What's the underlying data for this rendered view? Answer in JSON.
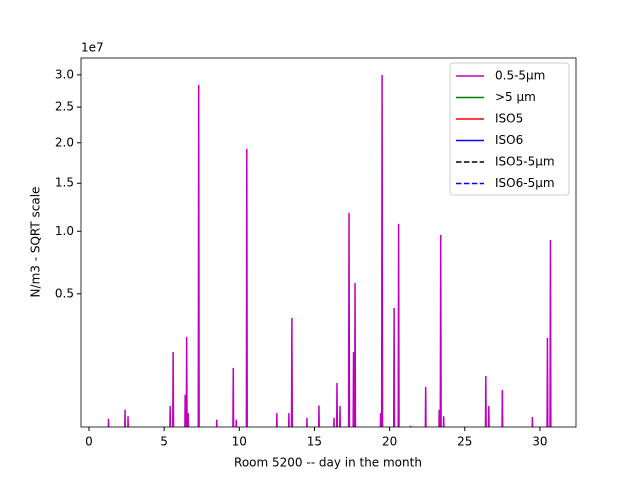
{
  "chart_data": {
    "type": "line",
    "xlabel": "Room 5200 -- day in the month",
    "ylabel": "N/m3 - SQRT scale",
    "y_offset_label": "1e7",
    "yscale": "sqrt",
    "xlim": [
      -0.53,
      32.4
    ],
    "ylim": [
      0.007,
      3.28
    ],
    "xticks": [
      0,
      5,
      10,
      15,
      20,
      25,
      30
    ],
    "yticks": [
      0.5,
      {
        "value": 1.0,
        "label": "1.0"
      },
      1.5,
      {
        "value": 2.0,
        "label": "2.0"
      },
      2.5,
      {
        "value": 3.0,
        "label": "3.0"
      }
    ],
    "legend": "upper right",
    "series": [
      {
        "name": "0.5-5µm",
        "color": "#bf00bf",
        "linestyle": "solid",
        "x": [
          0,
          1.27,
          1.3,
          1.33,
          2.37,
          2.4,
          2.43,
          2.57,
          2.6,
          2.63,
          5.37,
          5.4,
          5.43,
          5.57,
          5.6,
          5.63,
          6.37,
          6.4,
          6.43,
          6.47,
          6.5,
          6.53,
          6.57,
          6.6,
          6.63,
          7.27,
          7.3,
          7.33,
          8.47,
          8.5,
          8.53,
          9.57,
          9.6,
          9.63,
          9.77,
          9.8,
          9.83,
          10.47,
          10.5,
          10.53,
          12.47,
          12.5,
          12.53,
          13.27,
          13.3,
          13.33,
          13.47,
          13.5,
          13.53,
          14.47,
          14.5,
          14.53,
          15.27,
          15.3,
          15.33,
          16.27,
          16.3,
          16.33,
          16.47,
          16.5,
          16.53,
          16.67,
          16.7,
          16.73,
          17.27,
          17.3,
          17.33,
          17.57,
          17.6,
          17.63,
          17.67,
          17.7,
          17.73,
          19.37,
          19.4,
          19.43,
          19.47,
          19.5,
          19.53,
          20.27,
          20.3,
          20.33,
          20.57,
          20.6,
          20.63,
          21.37,
          21.4,
          21.43,
          22.37,
          22.4,
          22.43,
          23.27,
          23.3,
          23.33,
          23.37,
          23.4,
          23.43,
          23.57,
          23.6,
          23.63,
          26.37,
          26.4,
          26.43,
          26.57,
          26.6,
          26.63,
          27.47,
          27.5,
          27.53,
          29.47,
          29.5,
          29.53,
          30.47,
          30.5,
          30.53,
          30.67,
          30.7,
          30.73,
          31
        ],
        "values": [
          0,
          0,
          0.015,
          0,
          0,
          0.027,
          0,
          0,
          0.018,
          0,
          0,
          0.033,
          0,
          0,
          0.189,
          0,
          0,
          0.055,
          0,
          0,
          0.255,
          0,
          0,
          0.022,
          0,
          0,
          2.84,
          0,
          0,
          0.014,
          0,
          0,
          0.13,
          0,
          0,
          0.014,
          0,
          0,
          1.92,
          0,
          0,
          0.022,
          0,
          0,
          0.022,
          0,
          0,
          0.353,
          0,
          0,
          0.016,
          0,
          0,
          0.034,
          0,
          0,
          0.016,
          0,
          0,
          0.084,
          0,
          0,
          0.033,
          0,
          0,
          1.18,
          0,
          0,
          0.189,
          0,
          0,
          0.575,
          0,
          0,
          0.022,
          0,
          0,
          3.0,
          0,
          0,
          0.411,
          0,
          0,
          1.07,
          0,
          0,
          0.008,
          0,
          0,
          0.074,
          0,
          0,
          0.027,
          0,
          0,
          0.966,
          0,
          0,
          0.018,
          0,
          0,
          0.104,
          0,
          0,
          0.033,
          0,
          0,
          0.066,
          0,
          0,
          0.017,
          0,
          0,
          0.251,
          0,
          0,
          0.92,
          0,
          0
        ]
      },
      {
        "name": ">5 µm",
        "color": "#008000",
        "linestyle": "solid",
        "x": [],
        "values": []
      },
      {
        "name": "ISO5",
        "color": "#ff0000",
        "linestyle": "solid",
        "x": [],
        "values": []
      },
      {
        "name": "ISO6",
        "color": "#0000ff",
        "linestyle": "solid",
        "x": [],
        "values": []
      },
      {
        "name": "ISO5-5µm",
        "color": "#000000",
        "linestyle": "dashed",
        "x": [],
        "values": []
      },
      {
        "name": "ISO6-5µm",
        "color": "#0000ff",
        "linestyle": "dashed",
        "x": [],
        "values": []
      }
    ]
  }
}
